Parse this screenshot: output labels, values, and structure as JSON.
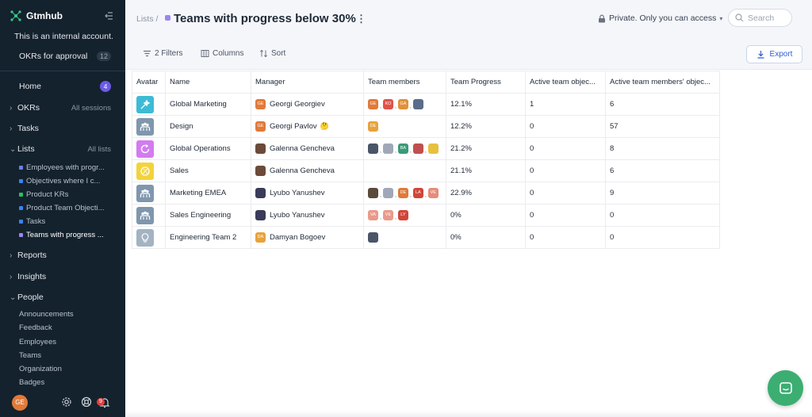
{
  "app": {
    "name": "Gtmhub",
    "internal_note": "This is an internal account.",
    "approval": {
      "label": "OKRs for approval",
      "count": "12"
    }
  },
  "sidebar": {
    "home": {
      "label": "Home",
      "badge": "4"
    },
    "okrs": {
      "label": "OKRs",
      "aside": "All sessions"
    },
    "tasks": {
      "label": "Tasks"
    },
    "lists": {
      "label": "Lists",
      "aside": "All lists",
      "items": [
        {
          "label": "Employees with progr...",
          "color": "#6b7fe8"
        },
        {
          "label": "Objectives where I c...",
          "color": "#3b82f6"
        },
        {
          "label": "Product KRs",
          "color": "#22c55e"
        },
        {
          "label": "Product Team Objecti...",
          "color": "#3b82f6"
        },
        {
          "label": "Tasks",
          "color": "#3b82f6"
        },
        {
          "label": "Teams with progress ...",
          "color": "#9b86f0"
        }
      ]
    },
    "reports": {
      "label": "Reports"
    },
    "insights": {
      "label": "Insights"
    },
    "people": {
      "label": "People",
      "items": [
        "Announcements",
        "Feedback",
        "Employees",
        "Teams",
        "Organization",
        "Badges"
      ]
    },
    "footer": {
      "avatar_initials": "GE",
      "notif_count": "9"
    }
  },
  "header": {
    "breadcrumb": "Lists /",
    "title": "Teams with progress below 30%",
    "privacy": "Private. Only you can access",
    "search_placeholder": "Search"
  },
  "toolbar": {
    "filters": "2 Filters",
    "columns": "Columns",
    "sort": "Sort",
    "export": "Export"
  },
  "table": {
    "columns": [
      "Avatar",
      "Name",
      "Manager",
      "Team members",
      "Team Progress",
      "Active team objec...",
      "Active team members' objec..."
    ],
    "rows": [
      {
        "name": "Global Marketing",
        "avatar_color": "#3dbbd6",
        "avatar_icon": "wand-icon",
        "manager": "Georgi Georgiev",
        "manager_initials": "GE",
        "manager_color": "#e07a3a",
        "manager_emoji": "",
        "members": [
          {
            "i": "GE",
            "c": "#e07a3a"
          },
          {
            "i": "KO",
            "c": "#e0524a"
          },
          {
            "i": "GA",
            "c": "#e0913a"
          },
          {
            "i": "",
            "c": "#5b6b8a"
          }
        ],
        "progress": "12.1%",
        "active_team": "1",
        "active_members": "6"
      },
      {
        "name": "Design",
        "avatar_color": "#7f97ad",
        "avatar_icon": "team-icon",
        "manager": "Georgi Pavlov",
        "manager_initials": "GE",
        "manager_color": "#e07a3a",
        "manager_emoji": "🤔",
        "members": [
          {
            "i": "DE",
            "c": "#e8a23c"
          }
        ],
        "progress": "12.2%",
        "active_team": "0",
        "active_members": "57"
      },
      {
        "name": "Global Operations",
        "avatar_color": "#d37bf0",
        "avatar_icon": "refresh-icon",
        "manager": "Galenna Gencheva",
        "manager_initials": "",
        "manager_color": "#6b4a3a",
        "manager_emoji": "",
        "members": [
          {
            "i": "",
            "c": "#4a5568"
          },
          {
            "i": "",
            "c": "#a0a8b8"
          },
          {
            "i": "BA",
            "c": "#3a9a7a"
          },
          {
            "i": "",
            "c": "#c05050"
          },
          {
            "i": "",
            "c": "#e8c040"
          }
        ],
        "progress": "21.2%",
        "active_team": "0",
        "active_members": "8"
      },
      {
        "name": "Sales",
        "avatar_color": "#f3d33c",
        "avatar_icon": "coin-icon",
        "manager": "Galenna Gencheva",
        "manager_initials": "",
        "manager_color": "#6b4a3a",
        "manager_emoji": "",
        "members": [],
        "progress": "21.1%",
        "active_team": "0",
        "active_members": "6"
      },
      {
        "name": "Marketing EMEA",
        "avatar_color": "#7f97ad",
        "avatar_icon": "team-icon",
        "manager": "Lyubo Yanushev",
        "manager_initials": "",
        "manager_color": "#3a3a5a",
        "manager_emoji": "",
        "members": [
          {
            "i": "",
            "c": "#5a4a3a"
          },
          {
            "i": "",
            "c": "#a0a8b8"
          },
          {
            "i": "DE",
            "c": "#e07a3a"
          },
          {
            "i": "LA",
            "c": "#d0463a"
          },
          {
            "i": "VE",
            "c": "#e88a7a"
          }
        ],
        "progress": "22.9%",
        "active_team": "0",
        "active_members": "9"
      },
      {
        "name": "Sales Engineering",
        "avatar_color": "#7f97ad",
        "avatar_icon": "team-icon",
        "manager": "Lyubo Yanushev",
        "manager_initials": "",
        "manager_color": "#3a3a5a",
        "manager_emoji": "",
        "members": [
          {
            "i": "VA",
            "c": "#ea9a8a"
          },
          {
            "i": "VE",
            "c": "#ea9a8a"
          },
          {
            "i": "LY",
            "c": "#d0463a"
          }
        ],
        "progress": "0%",
        "active_team": "0",
        "active_members": "0"
      },
      {
        "name": "Engineering Team 2",
        "avatar_color": "#a3b3c2",
        "avatar_icon": "bulb-icon",
        "manager": "Damyan Bogoev",
        "manager_initials": "DA",
        "manager_color": "#e8a23c",
        "manager_emoji": "",
        "members": [
          {
            "i": "",
            "c": "#4a5568"
          }
        ],
        "progress": "0%",
        "active_team": "0",
        "active_members": "0"
      }
    ]
  }
}
